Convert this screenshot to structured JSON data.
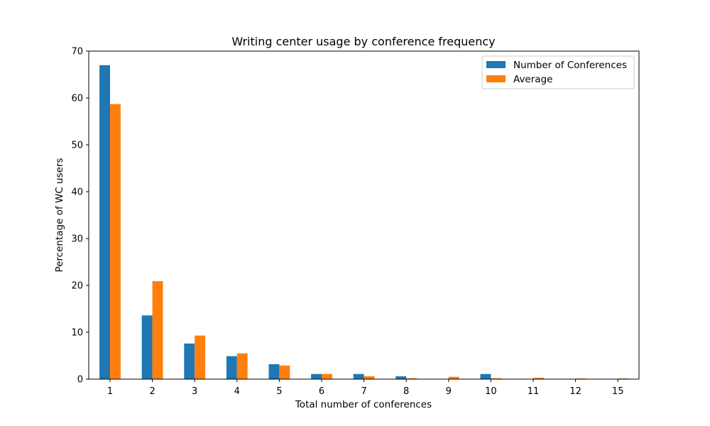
{
  "chart_data": {
    "type": "bar",
    "title": "Writing center usage by conference frequency",
    "xlabel": "Total number of conferences",
    "ylabel": "Percentage of WC users",
    "categories": [
      "1",
      "2",
      "3",
      "4",
      "5",
      "6",
      "7",
      "8",
      "9",
      "10",
      "11",
      "12",
      "15"
    ],
    "ylim": [
      0,
      70
    ],
    "yticks": [
      0,
      10,
      20,
      30,
      40,
      50,
      60,
      70
    ],
    "grid": false,
    "legend_position": "top-right",
    "series": [
      {
        "name": "Number of Conferences",
        "color": "#1f77b4",
        "values": [
          67.0,
          13.6,
          7.6,
          4.9,
          3.2,
          1.1,
          1.1,
          0.6,
          0.0,
          1.1,
          0.0,
          0.0,
          0.0
        ]
      },
      {
        "name": "Average",
        "color": "#ff7f0e",
        "values": [
          58.7,
          20.9,
          9.3,
          5.5,
          2.9,
          1.1,
          0.6,
          0.2,
          0.5,
          0.2,
          0.3,
          0.15,
          0.15
        ]
      }
    ]
  }
}
